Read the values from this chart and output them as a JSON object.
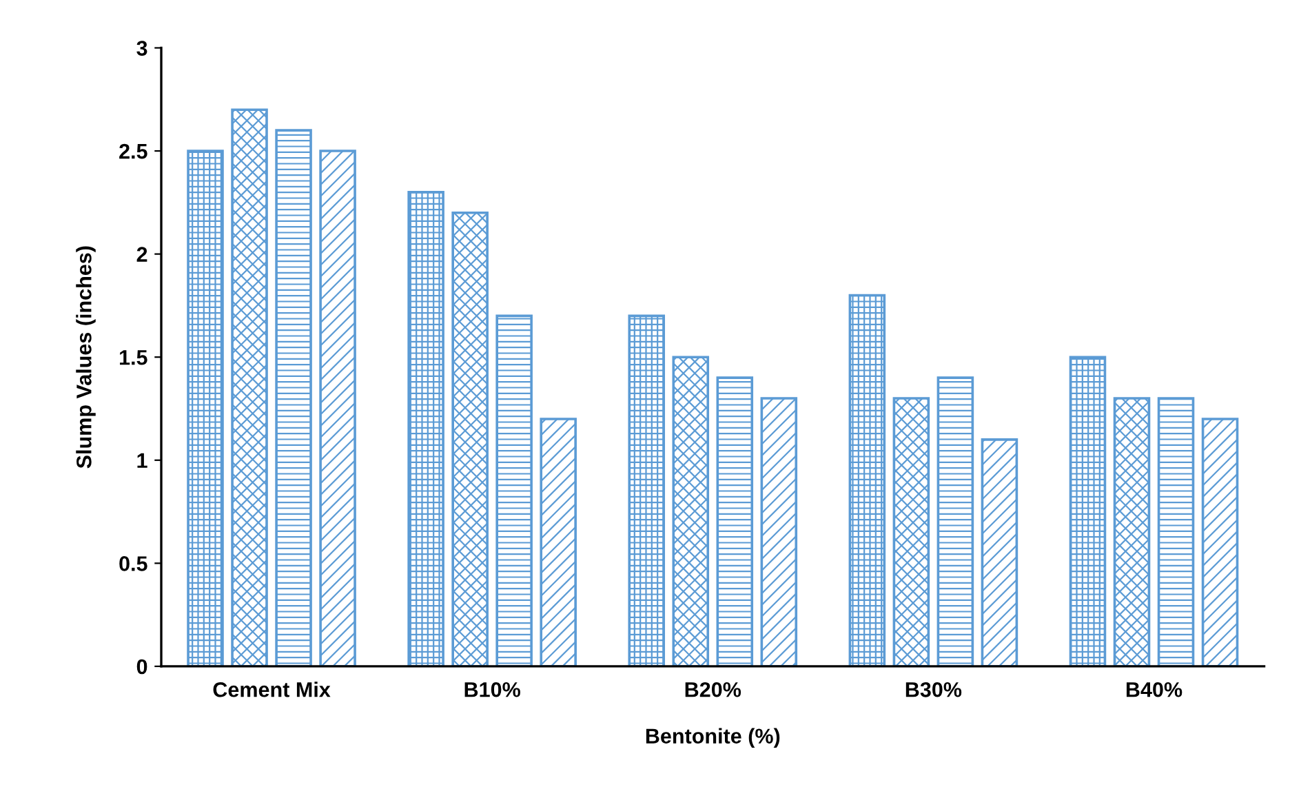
{
  "chart_data": {
    "type": "bar",
    "xlabel": "Bentonite (%)",
    "ylabel": "Slump Values (inches)",
    "categories": [
      "Cement Mix",
      "B10%",
      "B20%",
      "B30%",
      "B40%"
    ],
    "series": [
      {
        "color": "#5b9bd5",
        "values": [
          2.5,
          2.3,
          1.7,
          1.8,
          1.5
        ]
      },
      {
        "color": "#5b9bd5",
        "values": [
          2.7,
          2.2,
          1.5,
          1.3,
          1.3
        ]
      },
      {
        "color": "#5b9bd5",
        "values": [
          2.6,
          1.7,
          1.4,
          1.4,
          1.3
        ]
      },
      {
        "color": "#5b9bd5",
        "values": [
          2.5,
          1.2,
          1.3,
          1.1,
          1.2
        ]
      }
    ],
    "ylim": [
      0,
      3
    ],
    "yticks": [
      0,
      0.5,
      1,
      1.5,
      2,
      2.5,
      3
    ],
    "grid": false,
    "legend": false
  }
}
